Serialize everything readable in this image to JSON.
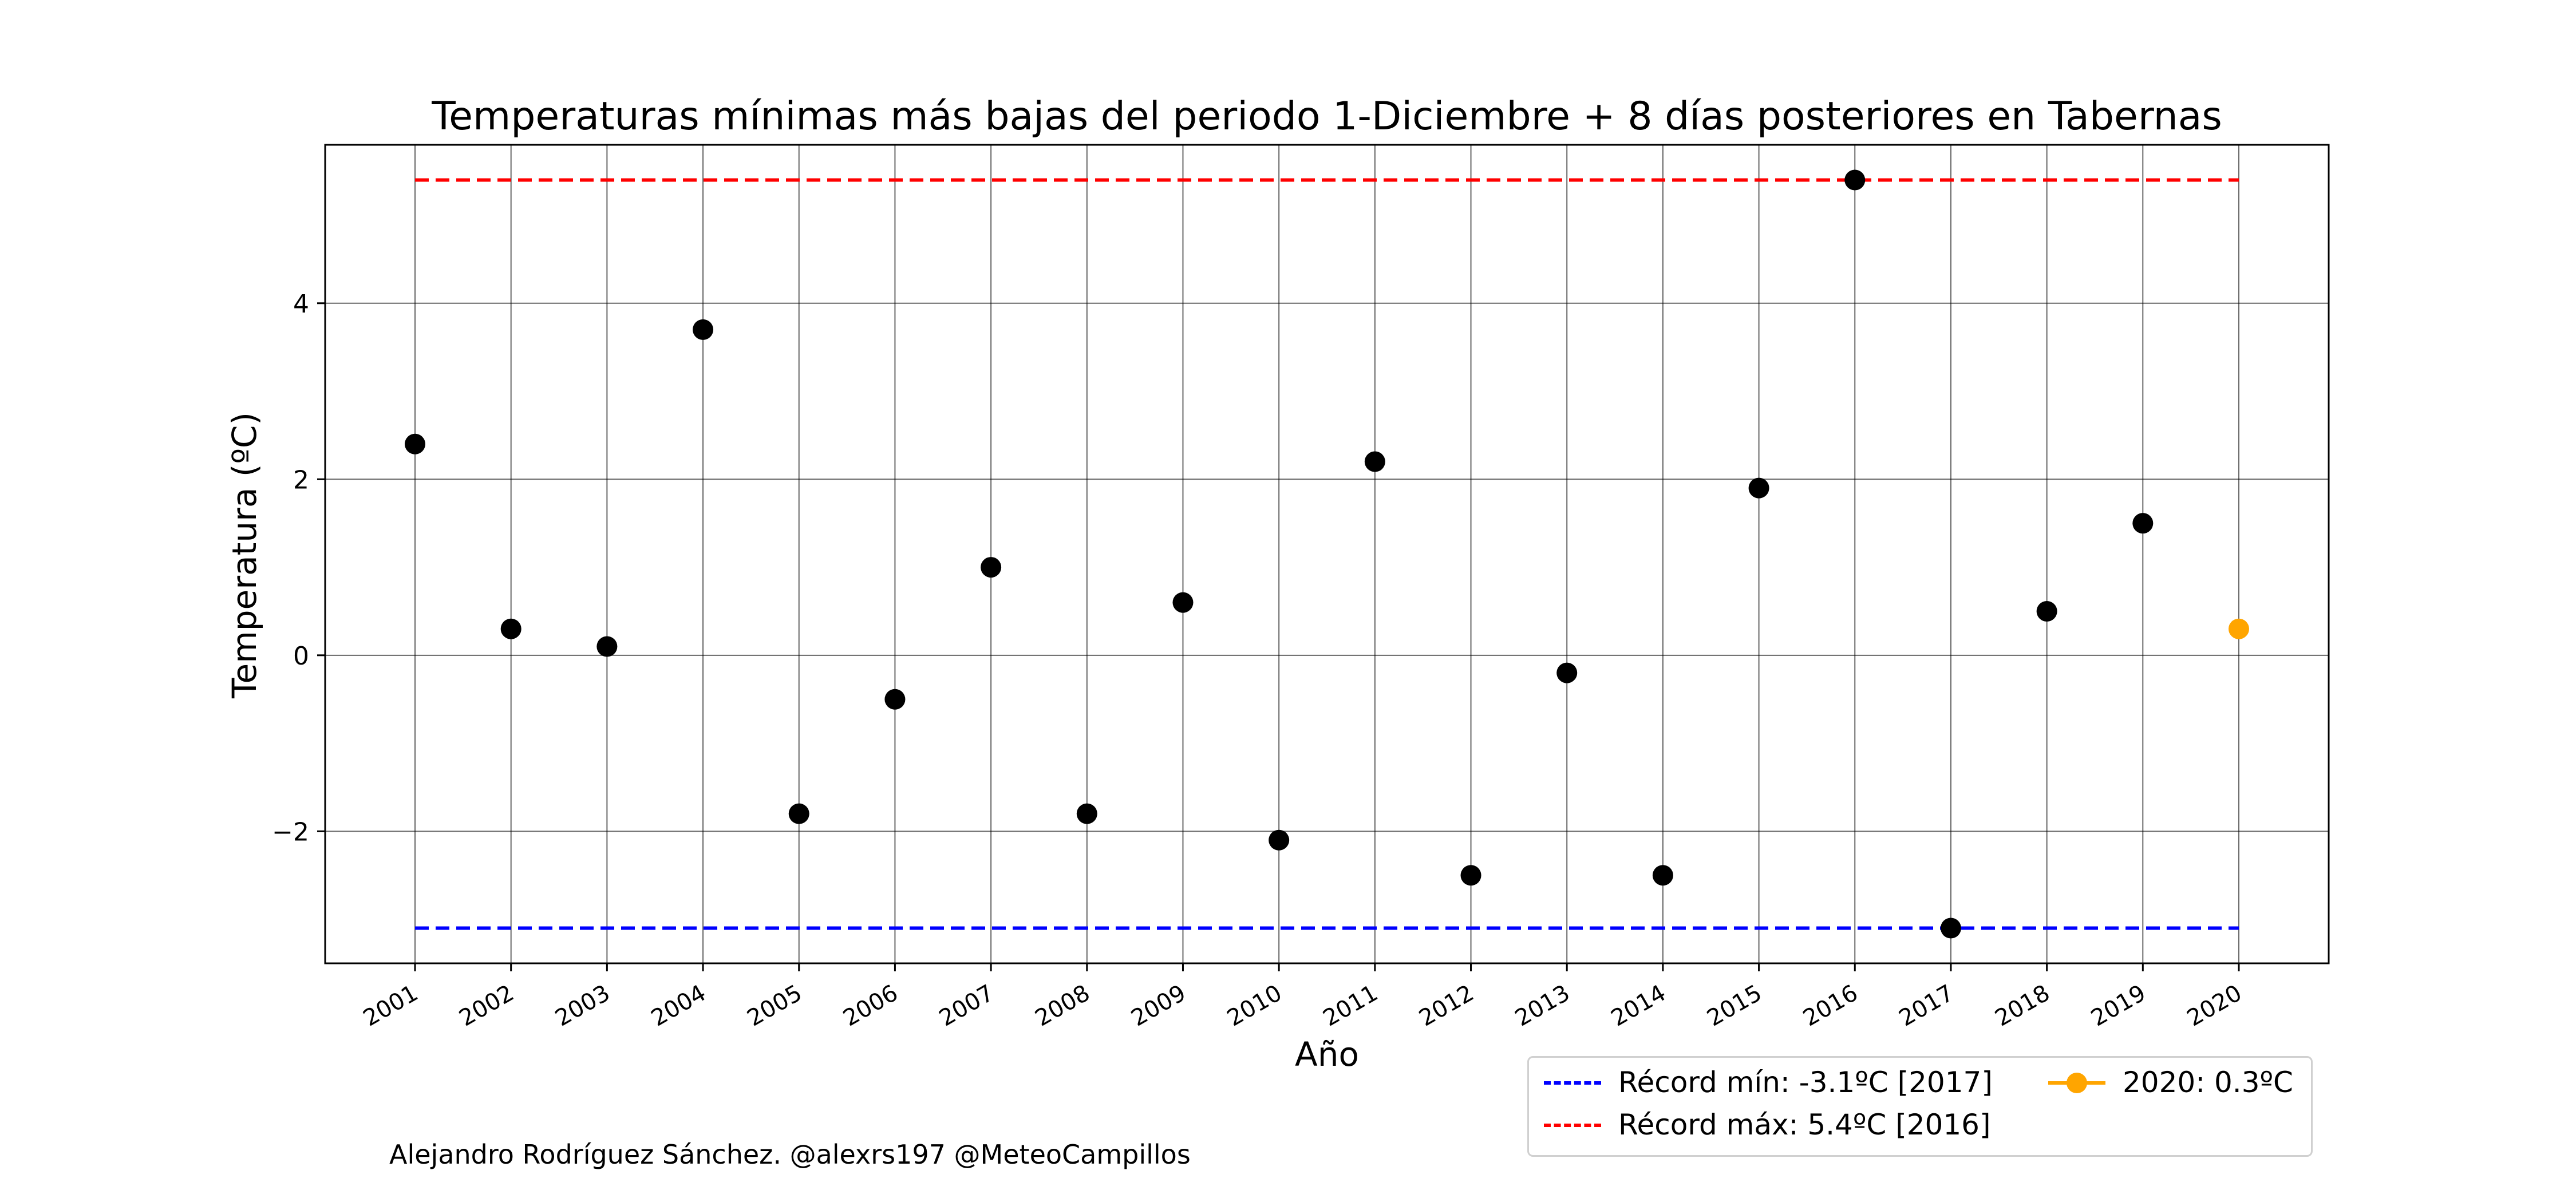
{
  "chart_data": {
    "type": "scatter",
    "title": "Temperaturas mínimas más bajas del periodo 1-Diciembre + 8 días posteriores en Tabernas",
    "xlabel": "Año",
    "ylabel": "Temperatura (ºC)",
    "categories": [
      "2001",
      "2002",
      "2003",
      "2004",
      "2005",
      "2006",
      "2007",
      "2008",
      "2009",
      "2010",
      "2011",
      "2012",
      "2013",
      "2014",
      "2015",
      "2016",
      "2017",
      "2018",
      "2019",
      "2020"
    ],
    "values": [
      2.4,
      0.3,
      0.1,
      3.7,
      -1.8,
      -0.5,
      1.0,
      -1.8,
      0.6,
      -2.1,
      2.2,
      -2.5,
      -0.2,
      -2.5,
      1.9,
      5.4,
      -3.1,
      0.5,
      1.5,
      0.3
    ],
    "highlight_index": 19,
    "yticks": [
      -2,
      0,
      2,
      4
    ],
    "ylim": [
      -3.5,
      5.8
    ],
    "record_min": -3.1,
    "record_max": 5.4,
    "grid": true,
    "legend_position": "bottom-right",
    "colors": {
      "points": "#000000",
      "highlight": "#ffa500",
      "record_min": "#0000ff",
      "record_max": "#ff0000"
    }
  },
  "legend": {
    "record_min": "Récord mín: -3.1ºC [2017]",
    "record_max": "Récord máx: 5.4ºC [2016]",
    "current": "2020: 0.3ºC"
  },
  "credit": "Alejandro Rodríguez Sánchez. @alexrs197 @MeteoCampillos"
}
